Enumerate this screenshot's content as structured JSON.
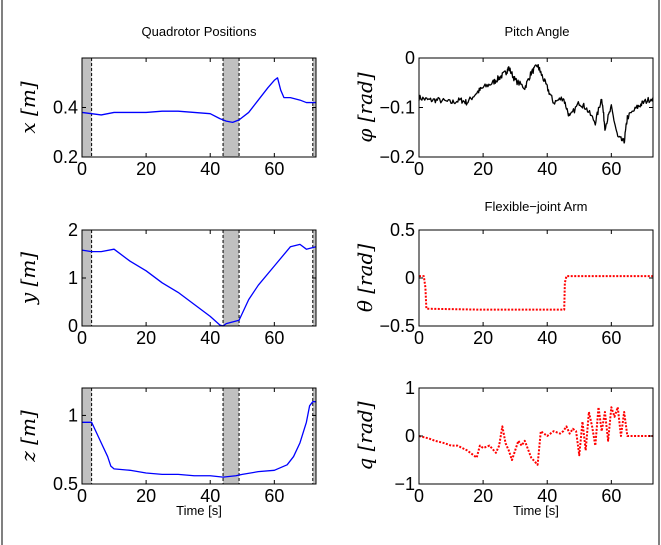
{
  "figure": {
    "left_title": "Quadrotor Positions",
    "right_title": "Pitch Angle"
  },
  "chart_data": [
    {
      "type": "line",
      "id": "x",
      "title": "",
      "ylabel": "x [m]",
      "xlabel": "",
      "xlim": [
        0,
        73
      ],
      "ylim": [
        0.2,
        0.6
      ],
      "xticks": [
        0,
        20,
        40,
        60
      ],
      "yticks": [
        0.2,
        0.4
      ],
      "shaded": [
        [
          0,
          3
        ],
        [
          44,
          49
        ],
        [
          72,
          73
        ]
      ],
      "series": [
        {
          "color": "#0000ff",
          "style": "solid",
          "x": [
            0,
            3,
            6,
            10,
            15,
            20,
            25,
            30,
            35,
            40,
            43,
            45,
            47,
            49,
            52,
            55,
            58,
            60,
            61,
            62,
            63,
            65,
            68,
            70,
            73
          ],
          "y": [
            0.38,
            0.375,
            0.37,
            0.38,
            0.38,
            0.38,
            0.385,
            0.385,
            0.38,
            0.375,
            0.355,
            0.345,
            0.34,
            0.35,
            0.38,
            0.43,
            0.48,
            0.51,
            0.52,
            0.47,
            0.44,
            0.44,
            0.43,
            0.42,
            0.42
          ]
        }
      ]
    },
    {
      "type": "line",
      "id": "y",
      "title": "",
      "ylabel": "y [m]",
      "xlabel": "",
      "xlim": [
        0,
        73
      ],
      "ylim": [
        0,
        2
      ],
      "xticks": [
        0,
        20,
        40,
        60
      ],
      "yticks": [
        0,
        1,
        2
      ],
      "shaded": [
        [
          0,
          3
        ],
        [
          44,
          49
        ],
        [
          72,
          73
        ]
      ],
      "series": [
        {
          "color": "#0000ff",
          "style": "solid",
          "x": [
            0,
            3,
            6,
            10,
            15,
            20,
            25,
            30,
            35,
            40,
            43,
            44,
            45,
            49,
            52,
            55,
            60,
            65,
            68,
            70,
            73
          ],
          "y": [
            1.58,
            1.55,
            1.55,
            1.6,
            1.35,
            1.15,
            0.9,
            0.7,
            0.45,
            0.2,
            0.02,
            0.0,
            0.05,
            0.12,
            0.55,
            0.85,
            1.25,
            1.65,
            1.7,
            1.6,
            1.65
          ]
        }
      ]
    },
    {
      "type": "line",
      "id": "z",
      "title": "",
      "ylabel": "z [m]",
      "xlabel": "Time [s]",
      "xlim": [
        0,
        73
      ],
      "ylim": [
        0.5,
        1.2
      ],
      "xticks": [
        0,
        20,
        40,
        60
      ],
      "yticks": [
        0.5,
        1
      ],
      "shaded": [
        [
          0,
          3
        ],
        [
          44,
          49
        ],
        [
          72,
          73
        ]
      ],
      "series": [
        {
          "color": "#0000ff",
          "style": "solid",
          "x": [
            0,
            3,
            4,
            6,
            8,
            9,
            10,
            15,
            20,
            25,
            30,
            35,
            40,
            44,
            48,
            50,
            55,
            60,
            62,
            64,
            66,
            68,
            70,
            71,
            72,
            73
          ],
          "y": [
            0.95,
            0.95,
            0.9,
            0.8,
            0.7,
            0.63,
            0.61,
            0.6,
            0.58,
            0.57,
            0.57,
            0.56,
            0.56,
            0.55,
            0.56,
            0.57,
            0.59,
            0.6,
            0.62,
            0.64,
            0.7,
            0.8,
            0.95,
            1.07,
            1.1,
            1.1
          ]
        }
      ]
    },
    {
      "type": "line",
      "id": "phi",
      "title": "",
      "ylabel": "φ [rad]",
      "xlabel": "",
      "xlim": [
        0,
        73
      ],
      "ylim": [
        -0.2,
        0
      ],
      "xticks": [
        0,
        20,
        40,
        60
      ],
      "yticks": [
        -0.2,
        -0.1,
        0
      ],
      "shaded": [],
      "series": [
        {
          "color": "#000000",
          "style": "solid",
          "noise": 0.006,
          "x": [
            0,
            3,
            6,
            10,
            13,
            15,
            18,
            20,
            23,
            25,
            27,
            28,
            30,
            33,
            35,
            37,
            38,
            40,
            42,
            45,
            47,
            50,
            52,
            55,
            57,
            58,
            60,
            62,
            64,
            65,
            68,
            70,
            73
          ],
          "y": [
            -0.08,
            -0.085,
            -0.085,
            -0.09,
            -0.085,
            -0.09,
            -0.07,
            -0.06,
            -0.05,
            -0.04,
            -0.03,
            -0.02,
            -0.045,
            -0.06,
            -0.03,
            -0.015,
            -0.03,
            -0.06,
            -0.09,
            -0.08,
            -0.12,
            -0.09,
            -0.1,
            -0.13,
            -0.08,
            -0.14,
            -0.1,
            -0.16,
            -0.17,
            -0.12,
            -0.1,
            -0.09,
            -0.08
          ]
        }
      ]
    },
    {
      "type": "line",
      "id": "theta",
      "title": "Flexible−joint Arm",
      "ylabel": "θ [rad]",
      "xlabel": "",
      "xlim": [
        0,
        73
      ],
      "ylim": [
        -0.5,
        0.5
      ],
      "xticks": [
        0,
        20,
        40,
        60
      ],
      "yticks": [
        -0.5,
        0,
        0.5
      ],
      "shaded": [],
      "series": [
        {
          "color": "#ff0000",
          "style": "dotted",
          "x": [
            0,
            1.5,
            2,
            2.3,
            20,
            44,
            45.3,
            45.5,
            46,
            73
          ],
          "y": [
            0.02,
            0.02,
            -0.1,
            -0.32,
            -0.33,
            -0.33,
            -0.33,
            -0.05,
            0.02,
            0.02
          ]
        }
      ]
    },
    {
      "type": "line",
      "id": "q",
      "title": "",
      "ylabel": "q [rad]",
      "xlabel": "Time [s]",
      "xlim": [
        0,
        73
      ],
      "ylim": [
        -1,
        1
      ],
      "xticks": [
        0,
        20,
        40,
        60
      ],
      "yticks": [
        -1,
        0,
        1
      ],
      "shaded": [],
      "series": [
        {
          "color": "#ff0000",
          "style": "dotted",
          "x": [
            0,
            3,
            5,
            8,
            10,
            12,
            15,
            18,
            19,
            20,
            22,
            24,
            25,
            26,
            27,
            28,
            29,
            30,
            31,
            32,
            33,
            35,
            37,
            38,
            39,
            40,
            42,
            44,
            45,
            46,
            47,
            48,
            49,
            50,
            51,
            52,
            53,
            54,
            55,
            56,
            57,
            58,
            59,
            60,
            61,
            62,
            63,
            64,
            65,
            68,
            70,
            73
          ],
          "y": [
            0,
            -0.05,
            -0.1,
            -0.15,
            -0.2,
            -0.2,
            -0.3,
            -0.45,
            -0.2,
            -0.25,
            -0.2,
            -0.35,
            -0.2,
            0.2,
            -0.15,
            -0.3,
            -0.5,
            -0.3,
            -0.1,
            -0.2,
            -0.1,
            -0.45,
            -0.6,
            0.1,
            0.05,
            0.0,
            0.1,
            0.05,
            0.1,
            0.2,
            0.05,
            0.15,
            0.1,
            -0.4,
            0.3,
            -0.3,
            0.5,
            0.2,
            -0.2,
            0.6,
            0.1,
            0.5,
            -0.1,
            0.6,
            0.4,
            0.6,
            0.0,
            0.5,
            0.0,
            0.0,
            0.0,
            0.0
          ]
        }
      ]
    }
  ]
}
